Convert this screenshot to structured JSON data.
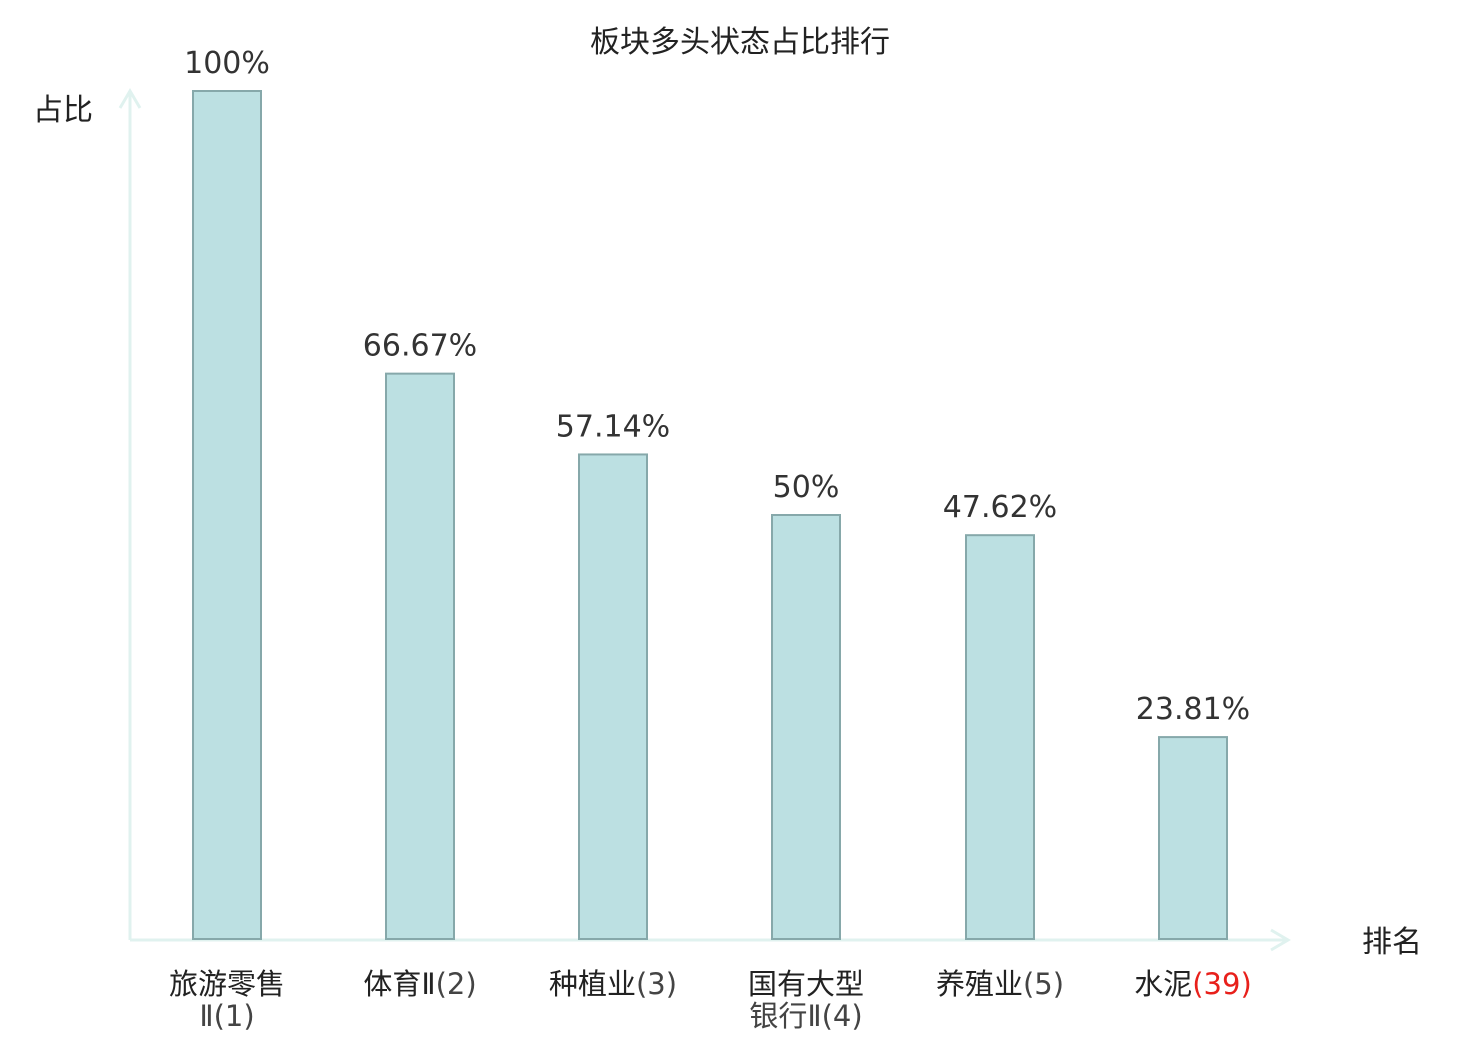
{
  "chart_data": {
    "type": "bar",
    "title": "板块多头状态占比排行",
    "ylabel": "占比",
    "xlabel": "排名",
    "ylim": [
      0,
      100
    ],
    "grid": false,
    "categories": [
      {
        "line1": "旅游零售",
        "line2": "Ⅱ(1)",
        "highlight": false
      },
      {
        "line1": "体育Ⅱ",
        "line2": "(2)",
        "highlight": false
      },
      {
        "line1": "种植业",
        "line2": "(3)",
        "highlight": false
      },
      {
        "line1": "国有大型",
        "line2": "银行Ⅱ(4)",
        "highlight": false
      },
      {
        "line1": "养殖业",
        "line2": "(5)",
        "highlight": false
      },
      {
        "line1": "水泥",
        "line2": "(39)",
        "highlight": true
      }
    ],
    "values": [
      100,
      66.67,
      57.14,
      50,
      47.62,
      23.81
    ],
    "value_labels": [
      "100%",
      "66.67%",
      "57.14%",
      "50%",
      "47.62%",
      "23.81%"
    ],
    "colors": {
      "bar_fill": "#bce0e2",
      "bar_stroke": "#86a8aa",
      "axis": "#e0f2ef",
      "highlight_text": "#e8201b"
    }
  }
}
